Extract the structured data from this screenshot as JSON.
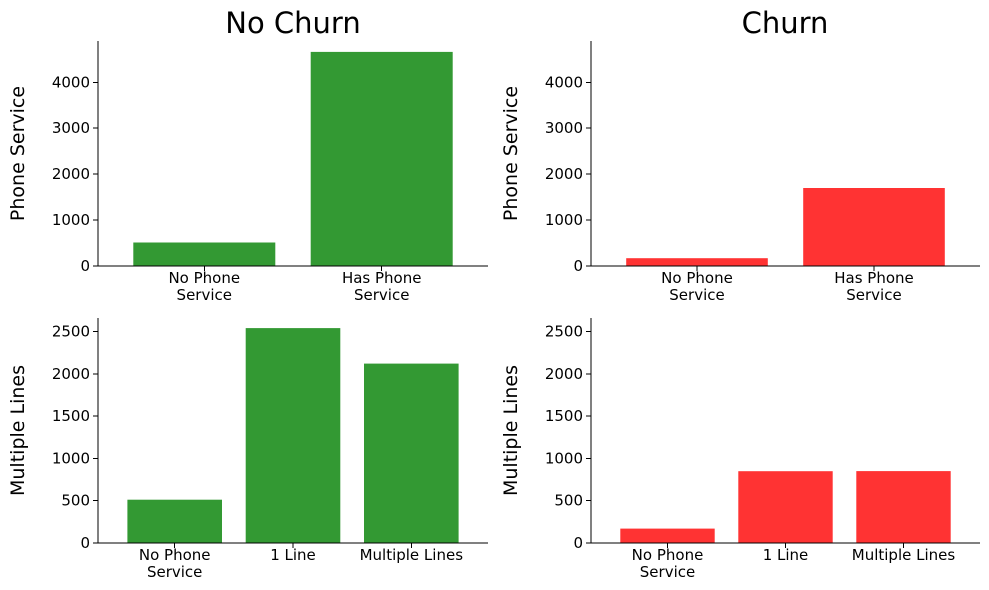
{
  "colors": {
    "no_churn": "#339933",
    "churn": "#ff3333"
  },
  "column_titles": [
    "No Churn",
    "Churn"
  ],
  "chart_data": [
    {
      "type": "bar",
      "title": "",
      "column": "No Churn",
      "ylabel": "Phone Service",
      "categories": [
        "No Phone\nService",
        "Has Phone\nService"
      ],
      "values": [
        512,
        4662
      ],
      "ylim": [
        0,
        4900
      ],
      "yticks": [
        0,
        1000,
        2000,
        3000,
        4000
      ],
      "color": "#339933",
      "grid": false
    },
    {
      "type": "bar",
      "title": "",
      "column": "Churn",
      "ylabel": "Phone Service",
      "categories": [
        "No Phone\nService",
        "Has Phone\nService"
      ],
      "values": [
        170,
        1699
      ],
      "ylim": [
        0,
        4900
      ],
      "yticks": [
        0,
        1000,
        2000,
        3000,
        4000
      ],
      "color": "#ff3333",
      "grid": false
    },
    {
      "type": "bar",
      "title": "",
      "column": "No Churn",
      "ylabel": "Multiple Lines",
      "categories": [
        "No Phone\nService",
        "1 Line",
        "Multiple Lines"
      ],
      "values": [
        512,
        2541,
        2121
      ],
      "ylim": [
        0,
        2660
      ],
      "yticks": [
        0,
        500,
        1000,
        1500,
        2000,
        2500
      ],
      "color": "#339933",
      "grid": false
    },
    {
      "type": "bar",
      "title": "",
      "column": "Churn",
      "ylabel": "Multiple Lines",
      "categories": [
        "No Phone\nService",
        "1 Line",
        "Multiple Lines"
      ],
      "values": [
        170,
        849,
        850
      ],
      "ylim": [
        0,
        2660
      ],
      "yticks": [
        0,
        500,
        1000,
        1500,
        2000,
        2500
      ],
      "color": "#ff3333",
      "grid": false
    }
  ]
}
